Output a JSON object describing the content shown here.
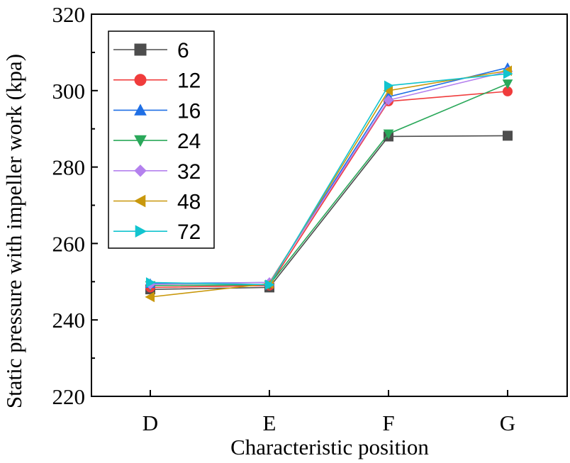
{
  "chart_data": {
    "type": "line",
    "title": "",
    "xlabel": "Characteristic position",
    "ylabel": "Static pressure with impeller work (kpa)",
    "categories": [
      "D",
      "E",
      "F",
      "G"
    ],
    "ylim": [
      220,
      320
    ],
    "yticks": [
      220,
      240,
      260,
      280,
      300,
      320
    ],
    "grid": false,
    "legend_position": "top-left",
    "series": [
      {
        "name": "6",
        "color": "#4d4d4d",
        "marker": "square",
        "values": [
          248.0,
          248.5,
          288.0,
          288.2
        ]
      },
      {
        "name": "12",
        "color": "#f03c3c",
        "marker": "circle",
        "values": [
          248.5,
          249.0,
          297.2,
          299.8
        ]
      },
      {
        "name": "16",
        "color": "#1f6fe5",
        "marker": "triangle-up",
        "values": [
          249.5,
          249.8,
          298.4,
          306.0
        ]
      },
      {
        "name": "24",
        "color": "#2aa85a",
        "marker": "triangle-down",
        "values": [
          249.0,
          249.2,
          288.7,
          301.8
        ]
      },
      {
        "name": "32",
        "color": "#b481ee",
        "marker": "diamond",
        "values": [
          249.3,
          249.8,
          297.5,
          305.0
        ]
      },
      {
        "name": "48",
        "color": "#c9980c",
        "marker": "triangle-left",
        "values": [
          246.0,
          249.5,
          300.0,
          305.2
        ]
      },
      {
        "name": "72",
        "color": "#12c4cf",
        "marker": "triangle-right",
        "values": [
          249.8,
          249.2,
          301.3,
          304.4
        ]
      }
    ]
  }
}
